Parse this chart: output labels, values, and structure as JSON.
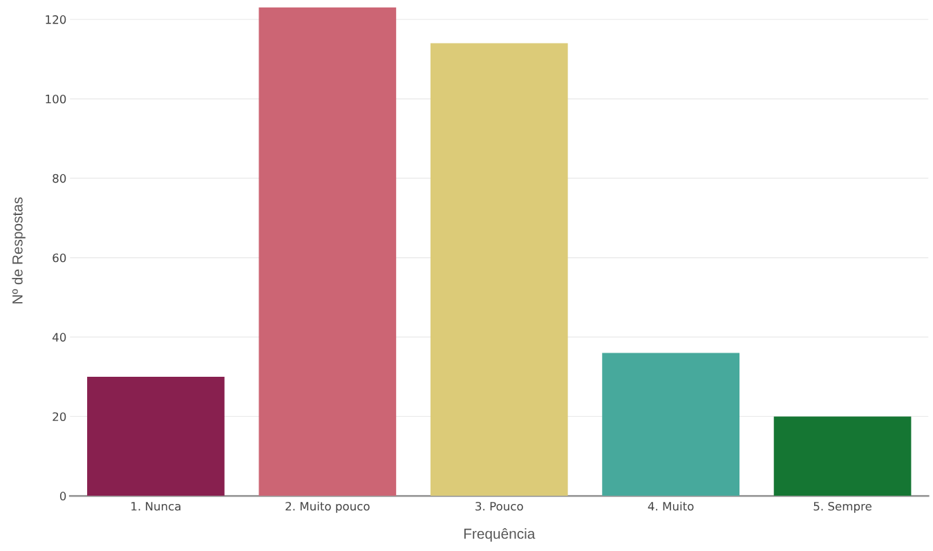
{
  "chart_data": {
    "type": "bar",
    "xlabel": "Frequência",
    "ylabel": "Nº de Respostas",
    "categories": [
      "1. Nunca",
      "2. Muito pouco",
      "3. Pouco",
      "4. Muito",
      "5. Sempre"
    ],
    "values": [
      30,
      123,
      114,
      36,
      20
    ],
    "colors": [
      "#88204f",
      "#cc6574",
      "#dccb78",
      "#47a99c",
      "#157633"
    ],
    "ylim": [
      0,
      123.5
    ],
    "yticks": [
      0,
      20,
      40,
      60,
      80,
      100,
      120
    ],
    "grid": "y",
    "legend": false
  }
}
